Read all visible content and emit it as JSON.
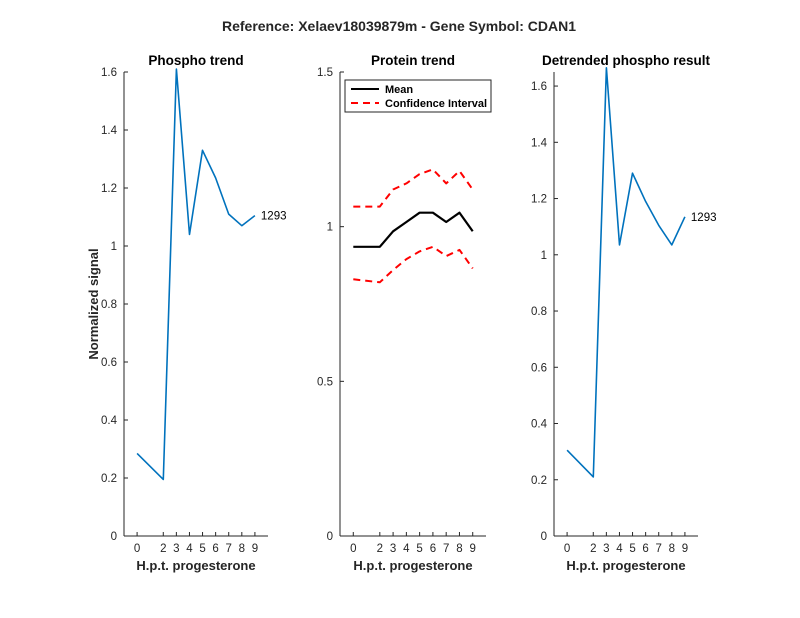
{
  "suptitle": "Reference:  Xelaev18039879m - Gene Symbol:  CDAN1",
  "chart_data": [
    {
      "type": "line",
      "title": "Phospho trend",
      "xlabel": "H.p.t. progesterone",
      "ylabel": "Normalized signal",
      "x": [
        0,
        2,
        3,
        4,
        5,
        6,
        7,
        8,
        9
      ],
      "xticks": [
        "0",
        "2",
        "3",
        "4",
        "5",
        "6",
        "7",
        "8",
        "9"
      ],
      "ylim": [
        0,
        1.6
      ],
      "yticks": [
        "0",
        "0.2",
        "0.4",
        "0.6",
        "0.8",
        "1",
        "1.2",
        "1.4",
        "1.6"
      ],
      "series": [
        {
          "values": [
            0.285,
            0.195,
            1.61,
            1.04,
            1.33,
            1.235,
            1.11,
            1.07,
            1.105
          ],
          "color": "#0072bd",
          "dash": "solid"
        }
      ],
      "end_label": "1293"
    },
    {
      "type": "line",
      "title": "Protein trend",
      "xlabel": "H.p.t. progesterone",
      "ylabel": "",
      "x": [
        0,
        2,
        3,
        4,
        5,
        6,
        7,
        8,
        9
      ],
      "xticks": [
        "0",
        "2",
        "3",
        "4",
        "5",
        "6",
        "7",
        "8",
        "9"
      ],
      "ylim": [
        0,
        1.5
      ],
      "yticks": [
        "0",
        "0.5",
        "1",
        "1.5"
      ],
      "legend": {
        "position": "top-left",
        "entries": [
          "Mean",
          "Confidence Interval"
        ]
      },
      "series": [
        {
          "name": "Mean",
          "values": [
            0.935,
            0.935,
            0.985,
            1.015,
            1.045,
            1.045,
            1.015,
            1.045,
            0.985
          ],
          "color": "#000000",
          "dash": "solid"
        },
        {
          "name": "Confidence Interval",
          "values": [
            1.065,
            1.065,
            1.12,
            1.14,
            1.17,
            1.185,
            1.14,
            1.18,
            1.12
          ],
          "color": "#ff0000",
          "dash": "dashed"
        },
        {
          "name": "Confidence Interval",
          "values": [
            0.83,
            0.82,
            0.86,
            0.895,
            0.92,
            0.935,
            0.905,
            0.925,
            0.865
          ],
          "color": "#ff0000",
          "dash": "dashed"
        }
      ]
    },
    {
      "type": "line",
      "title": "Detrended phospho result",
      "xlabel": "H.p.t. progesterone",
      "ylabel": "",
      "x": [
        0,
        2,
        3,
        4,
        5,
        6,
        7,
        8,
        9
      ],
      "xticks": [
        "0",
        "2",
        "3",
        "4",
        "5",
        "6",
        "7",
        "8",
        "9"
      ],
      "ylim": [
        0,
        1.65
      ],
      "yticks": [
        "0",
        "0.2",
        "0.4",
        "0.6",
        "0.8",
        "1",
        "1.2",
        "1.4",
        "1.6"
      ],
      "series": [
        {
          "values": [
            0.305,
            0.21,
            1.665,
            1.035,
            1.29,
            1.19,
            1.105,
            1.035,
            1.135
          ],
          "color": "#0072bd",
          "dash": "solid"
        }
      ],
      "end_label": "1293"
    }
  ]
}
